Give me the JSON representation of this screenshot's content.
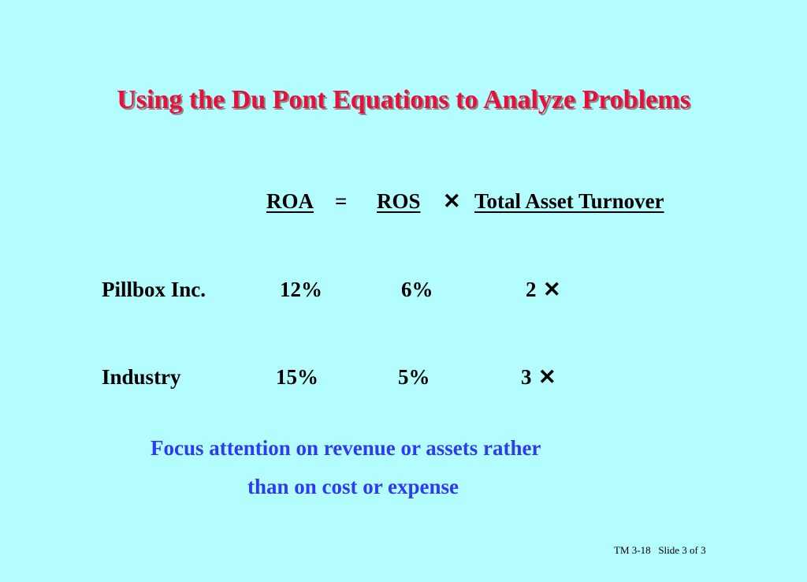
{
  "title": "Using the Du Pont Equations to Analyze Problems",
  "equation": {
    "roa": "ROA",
    "equals": "=",
    "ros": "ROS",
    "times": "✕",
    "tat": "Total Asset Turnover"
  },
  "rows": [
    {
      "name": "Pillbox Inc.",
      "roa": "12%",
      "ros": "6%",
      "tat": "2",
      "mult": "✕"
    },
    {
      "name": "Industry",
      "roa": "15%",
      "ros": "5%",
      "tat": "3",
      "mult": "✕"
    }
  ],
  "note": {
    "line1": "Focus attention on revenue or assets rather",
    "line2": "than on cost or expense"
  },
  "footer": "TM 3-18   Slide 3 of 3",
  "colors": {
    "background": "#b3fdff",
    "title": "#e8103a",
    "note": "#2f3bf0"
  }
}
